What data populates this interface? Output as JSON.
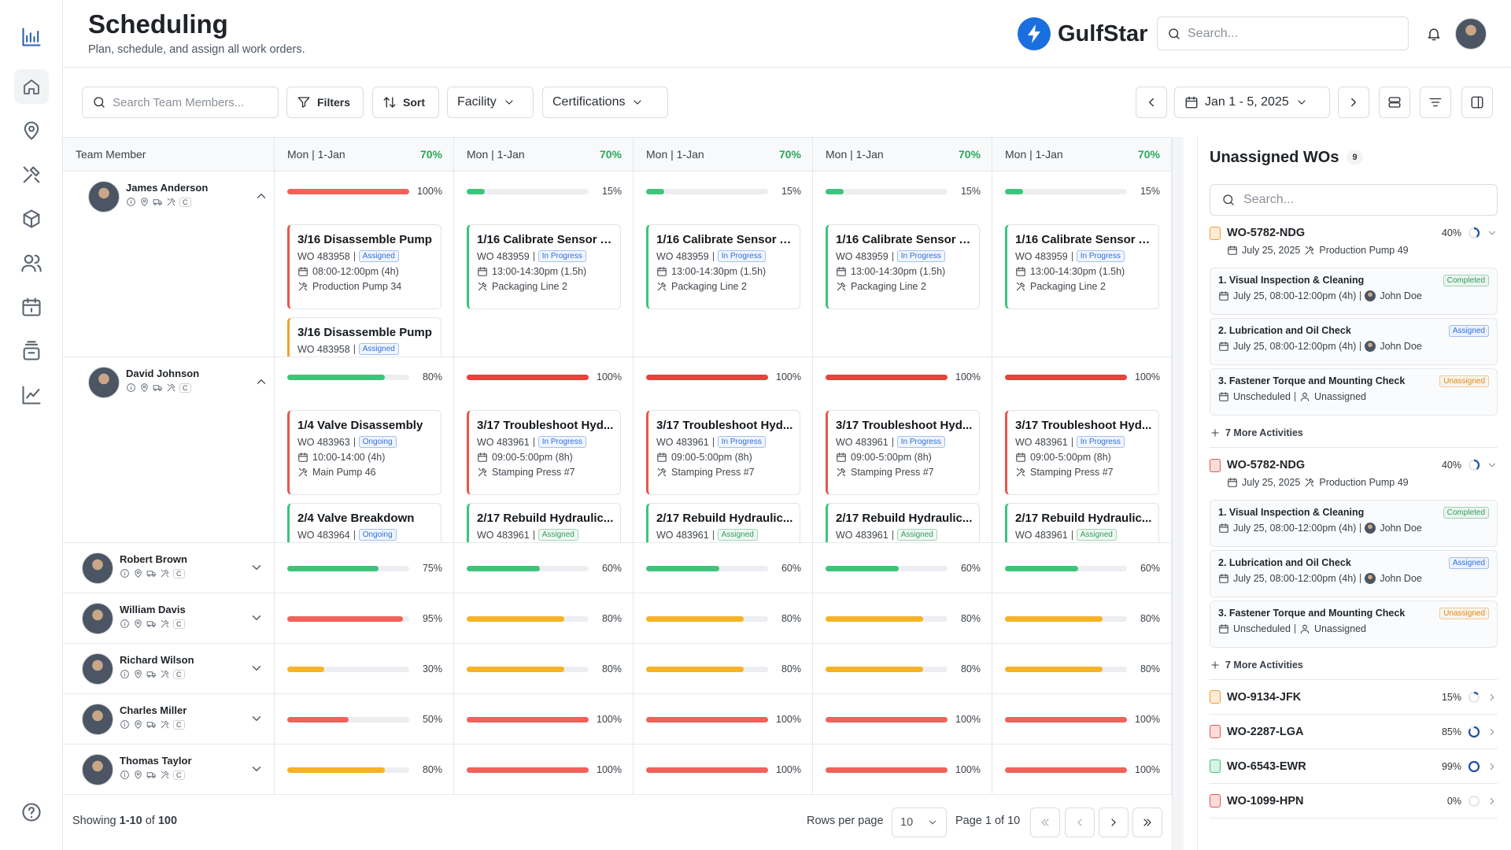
{
  "header": {
    "title": "Scheduling",
    "subtitle": "Plan, schedule, and assign all work orders.",
    "brand": "GulfStar",
    "search_placeholder": "Search..."
  },
  "toolbar": {
    "search_placeholder": "Search Team Members...",
    "filters": "Filters",
    "sort": "Sort",
    "facility": "Facility",
    "certifications": "Certifications",
    "date_range": "Jan 1 - 5, 2025"
  },
  "table": {
    "member_header": "Team Member",
    "days": [
      {
        "label": "Mon | 1-Jan",
        "capacity": "70%"
      },
      {
        "label": "Mon | 1-Jan",
        "capacity": "70%"
      },
      {
        "label": "Mon | 1-Jan",
        "capacity": "70%"
      },
      {
        "label": "Mon | 1-Jan",
        "capacity": "70%"
      },
      {
        "label": "Mon | 1-Jan",
        "capacity": "70%"
      }
    ],
    "rows": [
      {
        "name": "James Anderson",
        "badge": "C",
        "expanded": true,
        "cells": [
          {
            "utilization": "100%",
            "color": "#f0625a",
            "cards": [
              {
                "title": "3/16 Disassemble Pump",
                "wo": "WO 483958",
                "status": "Assigned",
                "status_color": "#2f6fde",
                "time": "08:00-12:00pm (4h)",
                "location": "Production Pump 34",
                "accent": "#e8564c"
              },
              {
                "title": "3/16 Disassemble Pump",
                "wo": "WO 483958",
                "status": "Assigned",
                "status_color": "#2f6fde",
                "accent": "#f0a030"
              }
            ]
          },
          {
            "utilization": "15%",
            "color": "#3ec37a",
            "cards": [
              {
                "title": "1/16 Calibrate Sensor A...",
                "wo": "WO 483959",
                "status": "In Progress",
                "status_color": "#2f6fde",
                "time": "13:00-14:30pm (1.5h)",
                "location": "Packaging Line 2",
                "accent": "#3cc47c"
              }
            ]
          },
          {
            "utilization": "15%",
            "color": "#3ec37a",
            "cards": [
              {
                "title": "1/16 Calibrate Sensor A...",
                "wo": "WO 483959",
                "status": "In Progress",
                "status_color": "#2f6fde",
                "time": "13:00-14:30pm (1.5h)",
                "location": "Packaging Line 2",
                "accent": "#3cc47c"
              }
            ]
          },
          {
            "utilization": "15%",
            "color": "#3ec37a",
            "cards": [
              {
                "title": "1/16 Calibrate Sensor A...",
                "wo": "WO 483959",
                "status": "In Progress",
                "status_color": "#2f6fde",
                "time": "13:00-14:30pm (1.5h)",
                "location": "Packaging Line 2",
                "accent": "#3cc47c"
              }
            ]
          },
          {
            "utilization": "15%",
            "color": "#3ec37a",
            "cards": [
              {
                "title": "1/16 Calibrate Sensor A...",
                "wo": "WO 483959",
                "status": "In Progress",
                "status_color": "#2f6fde",
                "time": "13:00-14:30pm (1.5h)",
                "location": "Packaging Line 2",
                "accent": "#3cc47c"
              }
            ]
          }
        ]
      },
      {
        "name": "David Johnson",
        "badge": "C",
        "expanded": true,
        "cells": [
          {
            "utilization": "80%",
            "color": "#3ec37a",
            "cards": [
              {
                "title": "1/4 Valve Disassembly",
                "wo": "WO 483963",
                "status": "Ongoing",
                "status_color": "#2f6fde",
                "time": "10:00-14:00 (4h)",
                "location": "Main Pump 46",
                "accent": "#e8564c"
              },
              {
                "title": "2/4 Valve Breakdown",
                "wo": "WO 483964",
                "status": "Ongoing",
                "status_color": "#2f6fde",
                "accent": "#3cc47c"
              }
            ]
          },
          {
            "utilization": "100%",
            "color": "#e8423a",
            "cards": [
              {
                "title": "3/17 Troubleshoot Hyd...",
                "wo": "WO 483961",
                "status": "In Progress",
                "status_color": "#2f6fde",
                "time": "09:00-5:00pm (8h)",
                "location": "Stamping Press #7",
                "accent": "#e8564c"
              },
              {
                "title": "2/17 Rebuild Hydraulic...",
                "wo": "WO 483961",
                "status": "Assigned",
                "status_color": "#2e9e5b",
                "accent": "#3cc47c"
              }
            ]
          },
          {
            "utilization": "100%",
            "color": "#e8423a",
            "cards": [
              {
                "title": "3/17 Troubleshoot Hyd...",
                "wo": "WO 483961",
                "status": "In Progress",
                "status_color": "#2f6fde",
                "time": "09:00-5:00pm (8h)",
                "location": "Stamping Press #7",
                "accent": "#e8564c"
              },
              {
                "title": "2/17 Rebuild Hydraulic...",
                "wo": "WO 483961",
                "status": "Assigned",
                "status_color": "#2e9e5b",
                "accent": "#3cc47c"
              }
            ]
          },
          {
            "utilization": "100%",
            "color": "#e8423a",
            "cards": [
              {
                "title": "3/17 Troubleshoot Hyd...",
                "wo": "WO 483961",
                "status": "In Progress",
                "status_color": "#2f6fde",
                "time": "09:00-5:00pm (8h)",
                "location": "Stamping Press #7",
                "accent": "#e8564c"
              },
              {
                "title": "2/17 Rebuild Hydraulic...",
                "wo": "WO 483961",
                "status": "Assigned",
                "status_color": "#2e9e5b",
                "accent": "#3cc47c"
              }
            ]
          },
          {
            "utilization": "100%",
            "color": "#e8423a",
            "cards": [
              {
                "title": "3/17 Troubleshoot Hyd...",
                "wo": "WO 483961",
                "status": "In Progress",
                "status_color": "#2f6fde",
                "time": "09:00-5:00pm (8h)",
                "location": "Stamping Press #7",
                "accent": "#e8564c"
              },
              {
                "title": "2/17 Rebuild Hydraulic...",
                "wo": "WO 483961",
                "status": "Assigned",
                "status_color": "#2e9e5b",
                "accent": "#3cc47c"
              }
            ]
          }
        ]
      },
      {
        "name": "Robert Brown",
        "badge": "C",
        "expanded": false,
        "cells": [
          {
            "utilization": "75%",
            "color": "#3ec37a"
          },
          {
            "utilization": "60%",
            "color": "#3ec37a"
          },
          {
            "utilization": "60%",
            "color": "#3ec37a"
          },
          {
            "utilization": "60%",
            "color": "#3ec37a"
          },
          {
            "utilization": "60%",
            "color": "#3ec37a"
          }
        ]
      },
      {
        "name": "William Davis",
        "badge": "C",
        "expanded": false,
        "cells": [
          {
            "utilization": "95%",
            "color": "#f0625a"
          },
          {
            "utilization": "80%",
            "color": "#f5b325"
          },
          {
            "utilization": "80%",
            "color": "#f5b325"
          },
          {
            "utilization": "80%",
            "color": "#f5b325"
          },
          {
            "utilization": "80%",
            "color": "#f5b325"
          }
        ]
      },
      {
        "name": "Richard Wilson",
        "badge": "C",
        "expanded": false,
        "cells": [
          {
            "utilization": "30%",
            "color": "#f5b325"
          },
          {
            "utilization": "80%",
            "color": "#f5b325"
          },
          {
            "utilization": "80%",
            "color": "#f5b325"
          },
          {
            "utilization": "80%",
            "color": "#f5b325"
          },
          {
            "utilization": "80%",
            "color": "#f5b325"
          }
        ]
      },
      {
        "name": "Charles Miller",
        "badge": "C",
        "expanded": false,
        "cells": [
          {
            "utilization": "50%",
            "color": "#f0625a"
          },
          {
            "utilization": "100%",
            "color": "#f0625a"
          },
          {
            "utilization": "100%",
            "color": "#f0625a"
          },
          {
            "utilization": "100%",
            "color": "#f0625a"
          },
          {
            "utilization": "100%",
            "color": "#f0625a"
          }
        ]
      },
      {
        "name": "Thomas Taylor",
        "badge": "C",
        "expanded": false,
        "cells": [
          {
            "utilization": "80%",
            "color": "#f5b325"
          },
          {
            "utilization": "100%",
            "color": "#f0625a"
          },
          {
            "utilization": "100%",
            "color": "#f0625a"
          },
          {
            "utilization": "100%",
            "color": "#f0625a"
          },
          {
            "utilization": "100%",
            "color": "#f0625a"
          }
        ]
      }
    ]
  },
  "footer": {
    "showing": "Showing",
    "range": "1-10",
    "of": "of",
    "total": "100",
    "rows_per_page": "Rows per page",
    "page_size": "10",
    "page_info": "Page 1 of 10"
  },
  "panel": {
    "title": "Unassigned WOs",
    "count": "9",
    "search_placeholder": "Search...",
    "work_orders": [
      {
        "id": "WO-5782-NDG",
        "progress": "40%",
        "icon_color": "#f0a030",
        "expanded": true,
        "date": "July 25, 2025",
        "asset": "Production Pump 49",
        "activities": [
          {
            "title": "1. Visual Inspection & Cleaning",
            "status": "Completed",
            "status_color": "#2e9e5b",
            "schedule": "July 25, 08:00-12:00pm (4h)",
            "assignee": "John Doe",
            "assignee_photo": true
          },
          {
            "title": "2. Lubrication and Oil Check",
            "status": "Assigned",
            "status_color": "#2f6fde",
            "schedule": "July 25, 08:00-12:00pm (4h)",
            "assignee": "John Doe",
            "assignee_photo": true
          },
          {
            "title": "3. Fastener Torque and Mounting Check",
            "status": "Unassigned",
            "status_color": "#e08a12",
            "schedule": "Unscheduled",
            "assignee": "Unassigned",
            "assignee_photo": false
          }
        ],
        "more": "7 More Activities"
      },
      {
        "id": "WO-5782-NDG",
        "progress": "40%",
        "icon_color": "#e8564c",
        "expanded": true,
        "date": "July 25, 2025",
        "asset": "Production Pump 49",
        "activities": [
          {
            "title": "1. Visual Inspection & Cleaning",
            "status": "Completed",
            "status_color": "#2e9e5b",
            "schedule": "July 25, 08:00-12:00pm (4h)",
            "assignee": "John Doe",
            "assignee_photo": true
          },
          {
            "title": "2. Lubrication and Oil Check",
            "status": "Assigned",
            "status_color": "#2f6fde",
            "schedule": "July 25, 08:00-12:00pm (4h)",
            "assignee": "John Doe",
            "assignee_photo": true
          },
          {
            "title": "3. Fastener Torque and Mounting Check",
            "status": "Unassigned",
            "status_color": "#e08a12",
            "schedule": "Unscheduled",
            "assignee": "Unassigned",
            "assignee_photo": false
          }
        ],
        "more": "7 More Activities"
      },
      {
        "id": "WO-9134-JFK",
        "progress": "15%",
        "icon_color": "#f0a030",
        "expanded": false
      },
      {
        "id": "WO-2287-LGA",
        "progress": "85%",
        "icon_color": "#e8564c",
        "expanded": false
      },
      {
        "id": "WO-6543-EWR",
        "progress": "99%",
        "icon_color": "#3cc47c",
        "expanded": false
      },
      {
        "id": "WO-1099-HPN",
        "progress": "0%",
        "icon_color": "#e8564c",
        "expanded": false
      }
    ]
  }
}
